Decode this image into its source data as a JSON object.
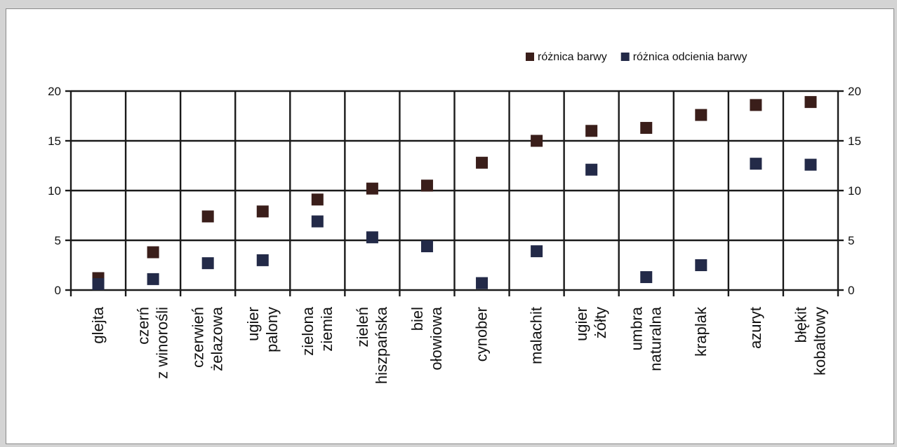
{
  "chart_data": {
    "type": "scatter",
    "categories": [
      [
        "glejta"
      ],
      [
        "czerń",
        "z winorośli"
      ],
      [
        "czerwień",
        "żelazowa"
      ],
      [
        "ugier",
        "palony"
      ],
      [
        "zielona",
        "ziemia"
      ],
      [
        "zieleń",
        "hiszpańska"
      ],
      [
        "biel",
        "ołowiowa"
      ],
      [
        "cynober"
      ],
      [
        "malachit"
      ],
      [
        "ugier",
        "żółty"
      ],
      [
        "umbra",
        "naturalna"
      ],
      [
        "kraplak"
      ],
      [
        "azuryt"
      ],
      [
        "błękit",
        "kobaltowy"
      ]
    ],
    "series": [
      {
        "name": "różnica barwy",
        "color": "#3a1e1a",
        "values": [
          1.2,
          3.8,
          7.4,
          7.9,
          9.1,
          10.2,
          10.5,
          12.8,
          15.0,
          16.0,
          16.3,
          17.6,
          18.6,
          18.9
        ]
      },
      {
        "name": "różnica odcienia barwy",
        "color": "#232a48",
        "values": [
          0.6,
          1.1,
          2.7,
          3.0,
          6.9,
          5.3,
          4.4,
          0.7,
          3.9,
          12.1,
          1.3,
          2.5,
          12.7,
          12.6
        ]
      }
    ],
    "ylim": [
      0,
      20
    ],
    "yticks": [
      0,
      5,
      10,
      15,
      20
    ],
    "grid": true,
    "secondary_y_axis": true,
    "legend_position": "top-right"
  }
}
